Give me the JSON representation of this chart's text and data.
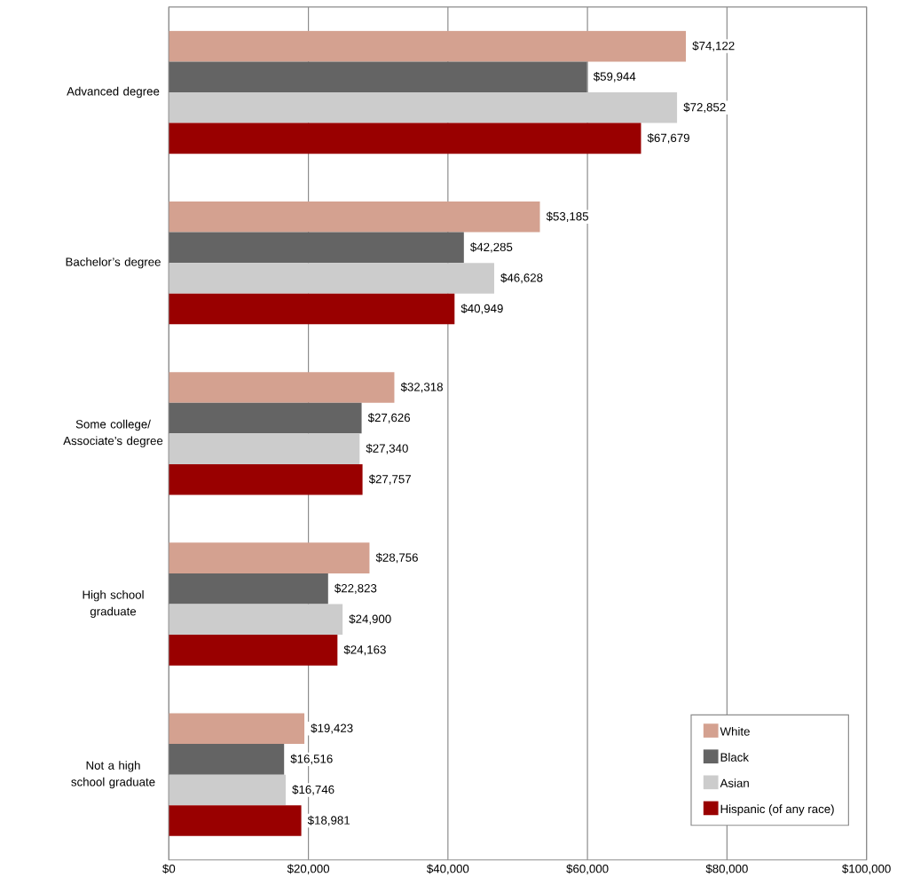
{
  "chart_data": {
    "type": "bar",
    "orientation": "horizontal",
    "categories": [
      "Advanced degree",
      "Bachelor’s degree",
      "Some college/ Associate’s degree",
      "High school graduate",
      "Not a high school graduate"
    ],
    "series": [
      {
        "name": "White",
        "color": "#d4a190",
        "values": [
          74122,
          53185,
          32318,
          28756,
          19423
        ],
        "value_labels": [
          "$74,122",
          "$53,185",
          "$32,318",
          "$28,756",
          "$19,423"
        ]
      },
      {
        "name": "Black",
        "color": "#646464",
        "values": [
          59944,
          42285,
          27626,
          22823,
          16516
        ],
        "value_labels": [
          "$59,944",
          "$42,285",
          "$27,626",
          "$22,823",
          "$16,516"
        ]
      },
      {
        "name": "Asian",
        "color": "#cccccc",
        "values": [
          72852,
          46628,
          27340,
          24900,
          16746
        ],
        "value_labels": [
          "$72,852",
          "$46,628",
          "$27,340",
          "$24,900",
          "$16,746"
        ]
      },
      {
        "name": "Hispanic (of any race)",
        "color": "#990000",
        "values": [
          67679,
          40949,
          27757,
          24163,
          18981
        ],
        "value_labels": [
          "$67,679",
          "$40,949",
          "$27,757",
          "$24,163",
          "$18,981"
        ]
      }
    ],
    "xlim": [
      0,
      100000
    ],
    "xticks": [
      {
        "value": 0,
        "label": "$0"
      },
      {
        "value": 20000,
        "label": "$20,000"
      },
      {
        "value": 40000,
        "label": "$40,000"
      },
      {
        "value": 60000,
        "label": "$60,000"
      },
      {
        "value": 80000,
        "label": "$80,000"
      },
      {
        "value": 100000,
        "label": "$100,000"
      }
    ],
    "grid": "x",
    "legend": "bottom right"
  }
}
